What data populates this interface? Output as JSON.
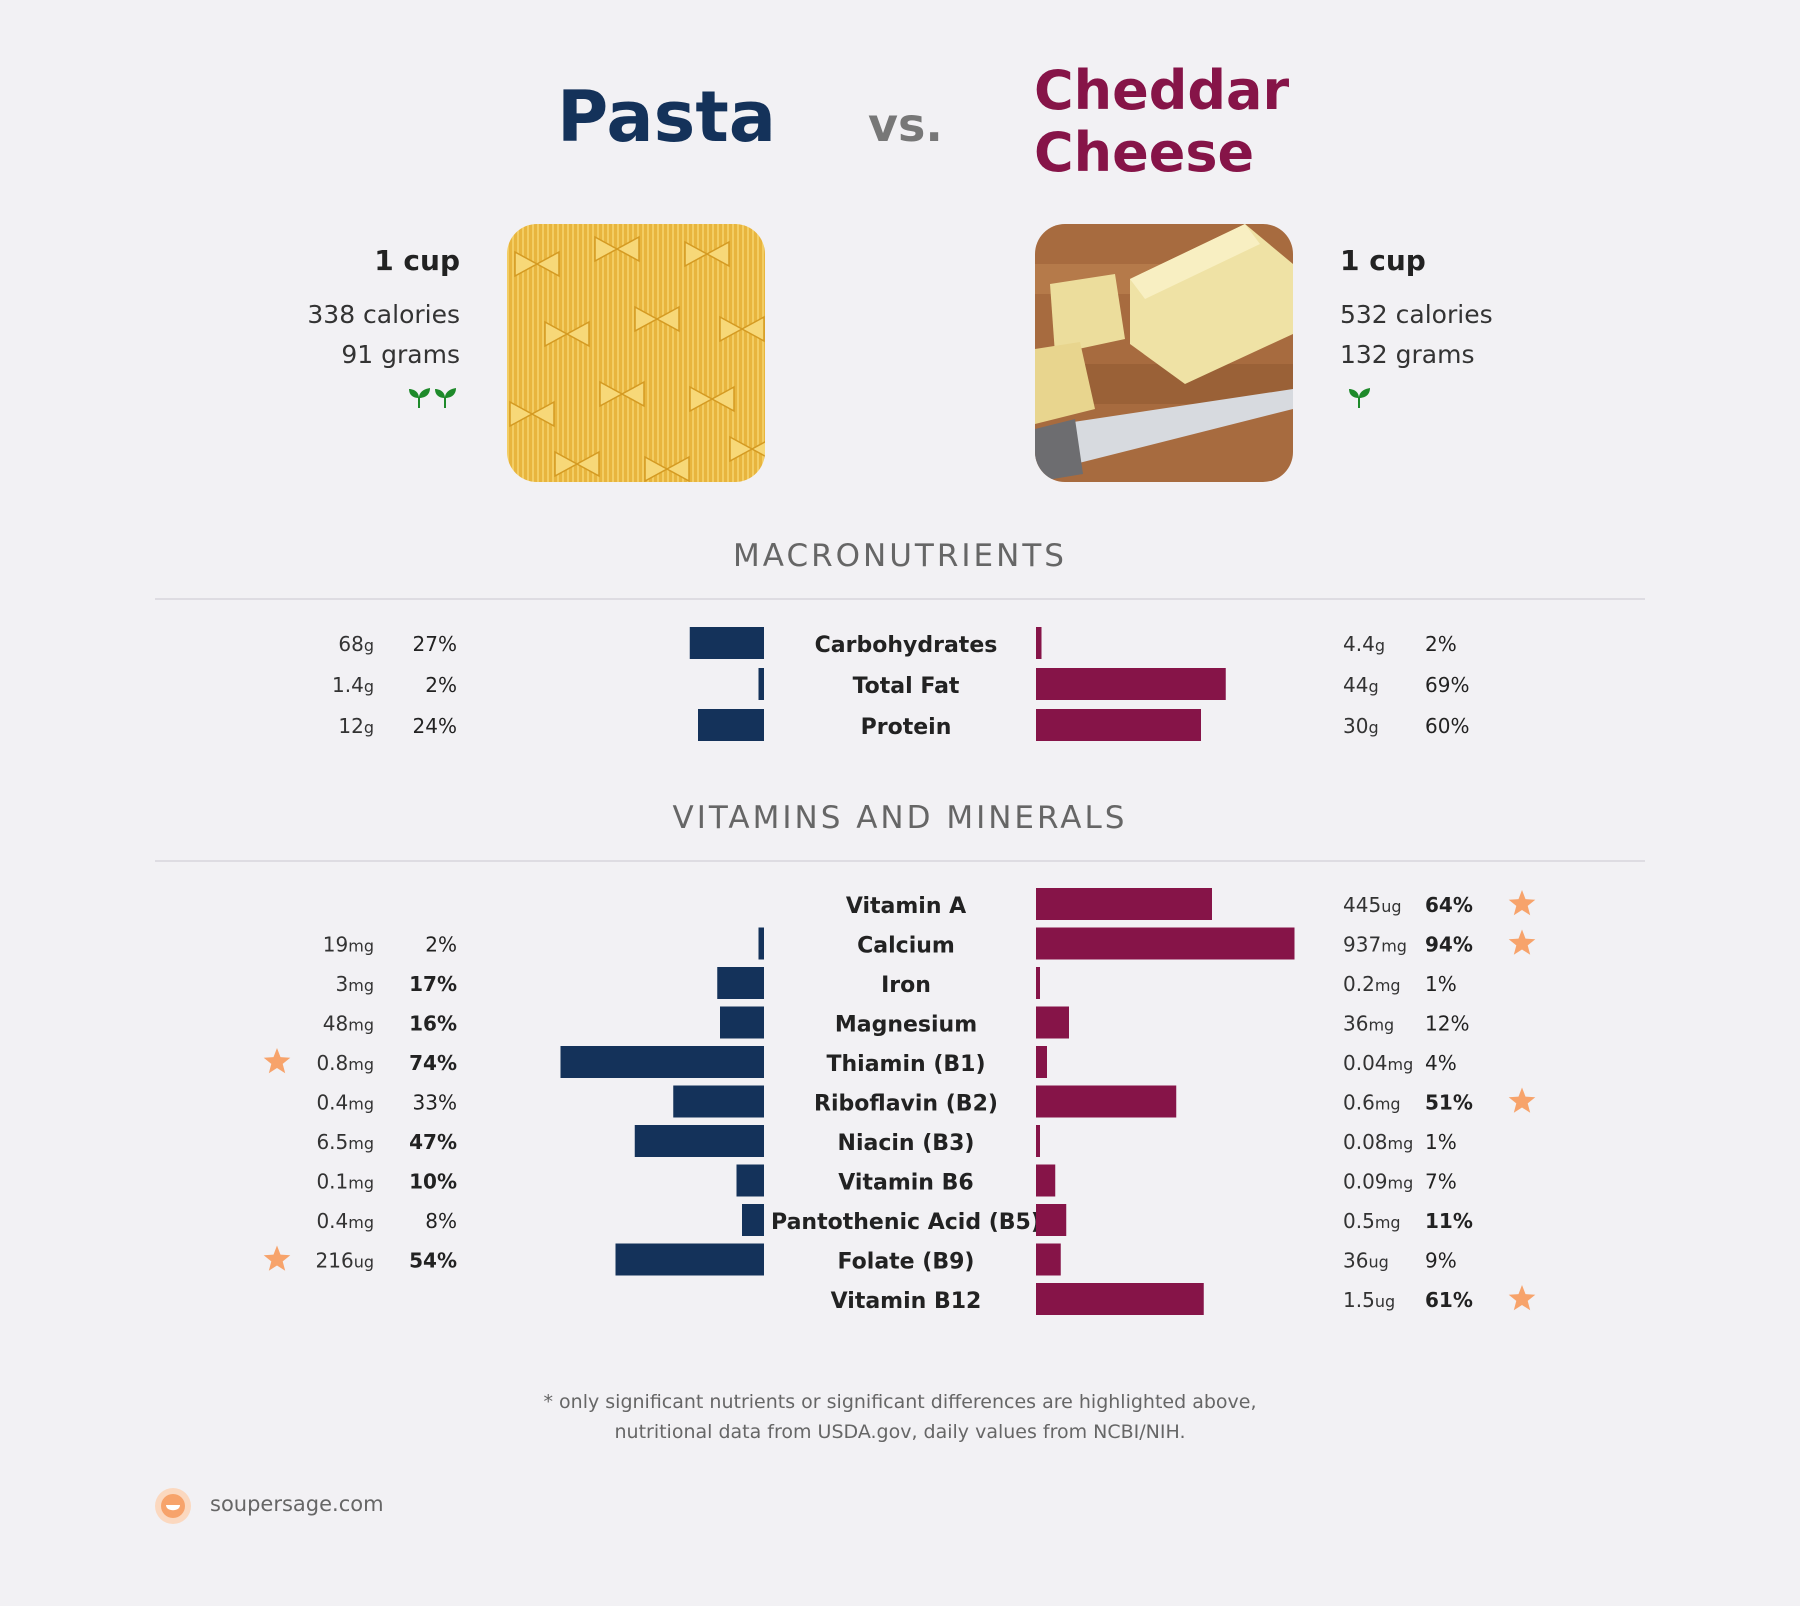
{
  "header": {
    "left_title": "Pasta",
    "vs": "vs.",
    "right_title_line1": "Cheddar",
    "right_title_line2": "Cheese"
  },
  "left_food": {
    "serving": "1 cup",
    "calories": "338 calories",
    "grams": "91 grams",
    "leaf_count": 2
  },
  "right_food": {
    "serving": "1 cup",
    "calories": "532 calories",
    "grams": "132 grams",
    "leaf_count": 1
  },
  "colors": {
    "left": "#14325a",
    "right": "#861448",
    "star": "#f7a36b",
    "leaf": "#1e8a2a"
  },
  "sections": {
    "macro_title": "MACRONUTRIENTS",
    "vitamin_title": "VITAMINS AND MINERALS"
  },
  "footer": {
    "note_line1": "* only significant nutrients or significant differences are highlighted above,",
    "note_line2": "nutritional data from USDA.gov, daily values from NCBI/NIH.",
    "brand": "soupersage.com"
  },
  "chart_data": [
    {
      "type": "bar",
      "title": "MACRONUTRIENTS",
      "categories": [
        "Carbohydrates",
        "Total Fat",
        "Protein"
      ],
      "series": [
        {
          "name": "Pasta",
          "amount": [
            "68",
            "1.4",
            "12"
          ],
          "unit": [
            "g",
            "g",
            "g"
          ],
          "values": [
            27,
            2,
            24
          ],
          "bold": [
            false,
            false,
            false
          ],
          "star": [
            false,
            false,
            false
          ]
        },
        {
          "name": "Cheddar Cheese",
          "amount": [
            "4.4",
            "44",
            "30"
          ],
          "unit": [
            "g",
            "g",
            "g"
          ],
          "values": [
            2,
            69,
            60
          ],
          "bold": [
            false,
            false,
            false
          ],
          "star": [
            false,
            false,
            false
          ]
        }
      ]
    },
    {
      "type": "bar",
      "title": "VITAMINS AND MINERALS",
      "categories": [
        "Vitamin A",
        "Calcium",
        "Iron",
        "Magnesium",
        "Thiamin (B1)",
        "Riboflavin (B2)",
        "Niacin (B3)",
        "Vitamin B6",
        "Pantothenic Acid (B5)",
        "Folate (B9)",
        "Vitamin B12"
      ],
      "series": [
        {
          "name": "Pasta",
          "amount": [
            null,
            "19",
            "3",
            "48",
            "0.8",
            "0.4",
            "6.5",
            "0.1",
            "0.4",
            "216",
            null
          ],
          "unit": [
            null,
            "mg",
            "mg",
            "mg",
            "mg",
            "mg",
            "mg",
            "mg",
            "mg",
            "ug",
            null
          ],
          "values": [
            null,
            2,
            17,
            16,
            74,
            33,
            47,
            10,
            8,
            54,
            null
          ],
          "bold": [
            false,
            false,
            true,
            true,
            true,
            false,
            true,
            true,
            false,
            true,
            false
          ],
          "star": [
            false,
            false,
            false,
            false,
            true,
            false,
            false,
            false,
            false,
            true,
            false
          ]
        },
        {
          "name": "Cheddar Cheese",
          "amount": [
            "445",
            "937",
            "0.2",
            "36",
            "0.04",
            "0.6",
            "0.08",
            "0.09",
            "0.5",
            "36",
            "1.5"
          ],
          "unit": [
            "ug",
            "mg",
            "mg",
            "mg",
            "mg",
            "mg",
            "mg",
            "mg",
            "mg",
            "ug",
            "ug"
          ],
          "values": [
            64,
            94,
            1,
            12,
            4,
            51,
            1,
            7,
            11,
            9,
            61
          ],
          "bold": [
            true,
            true,
            false,
            false,
            false,
            true,
            false,
            false,
            true,
            false,
            true
          ],
          "star": [
            true,
            true,
            false,
            false,
            false,
            true,
            false,
            false,
            false,
            false,
            true
          ]
        }
      ]
    }
  ]
}
